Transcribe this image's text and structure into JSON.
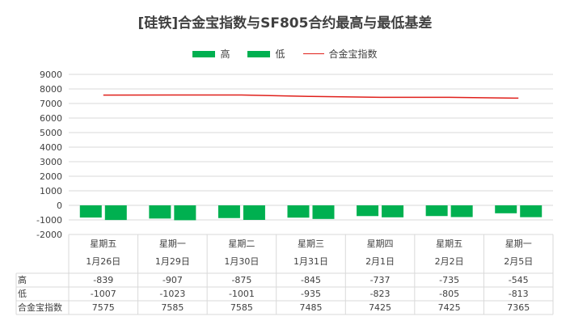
{
  "chart_data": {
    "type": "bar",
    "title": "[硅铁]合金宝指数与SF805合约最高与最低基差",
    "categories": [
      {
        "weekday": "星期五",
        "date": "1月26日"
      },
      {
        "weekday": "星期一",
        "date": "1月29日"
      },
      {
        "weekday": "星期二",
        "date": "1月30日"
      },
      {
        "weekday": "星期三",
        "date": "1月31日"
      },
      {
        "weekday": "星期四",
        "date": "2月1日"
      },
      {
        "weekday": "星期五",
        "date": "2月2日"
      },
      {
        "weekday": "星期一",
        "date": "2月5日"
      }
    ],
    "series": [
      {
        "name": "高",
        "kind": "bar",
        "color": "#00b050",
        "values": [
          -839,
          -907,
          -875,
          -845,
          -737,
          -735,
          -545
        ]
      },
      {
        "name": "低",
        "kind": "bar",
        "color": "#00b050",
        "values": [
          -1007,
          -1023,
          -1001,
          -935,
          -823,
          -805,
          -813
        ]
      },
      {
        "name": "合金宝指数",
        "kind": "line",
        "color": "#e0201b",
        "values": [
          7575,
          7585,
          7585,
          7485,
          7425,
          7425,
          7365
        ]
      }
    ],
    "ylim": [
      -2000,
      9000
    ],
    "yticks": [
      9000,
      8000,
      7000,
      6000,
      5000,
      4000,
      3000,
      2000,
      1000,
      0,
      -1000,
      -2000
    ],
    "grid": true,
    "legend": "top-center",
    "data_table": true
  }
}
